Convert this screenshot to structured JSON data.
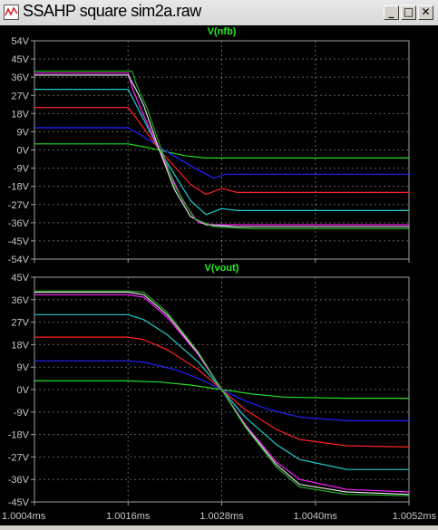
{
  "window": {
    "title": "SSAHP square sim2a.raw",
    "minimize_label": "_",
    "maximize_label": "□",
    "close_label": "✕"
  },
  "colors": {
    "background": "#000000",
    "axis": "#a0a0a0",
    "grid": "#a0a0a0",
    "tick_text": "#c8c8c8",
    "title": "#22ee22",
    "series": [
      "#22dd22",
      "#2222ff",
      "#ff2222",
      "#22cccc",
      "#ff22ff",
      "#e0e0e0",
      "#22aa22"
    ]
  },
  "chart_data": [
    {
      "type": "line",
      "title": "V(nfb)",
      "x_ticks": [
        "1.0004ms",
        "1.0016ms",
        "1.0028ms",
        "1.0040ms",
        "1.0052ms"
      ],
      "x_values": [
        1.0004,
        1.0016,
        1.0028,
        1.004,
        1.0052
      ],
      "xlim": [
        1.0004,
        1.0052
      ],
      "y_ticks": [
        "54V",
        "45V",
        "36V",
        "27V",
        "18V",
        "9V",
        "0V",
        "-9V",
        "-18V",
        "-27V",
        "-36V",
        "-45V",
        "-54V"
      ],
      "ylim": [
        -54,
        54
      ],
      "grid": true,
      "x_tick_labels_shown": false,
      "series": [
        {
          "color": "#22dd22",
          "x": [
            1.0004,
            1.0016,
            1.00188,
            1.0021,
            1.00235,
            1.0026,
            1.0029,
            1.0052
          ],
          "y": [
            3,
            3,
            1,
            -1,
            -3,
            -4,
            -4,
            -4
          ]
        },
        {
          "color": "#2222ff",
          "x": [
            1.0004,
            1.0016,
            1.00178,
            1.0021,
            1.0025,
            1.0027,
            1.00285,
            1.0032,
            1.0052
          ],
          "y": [
            11,
            11,
            7,
            -1,
            -10,
            -14,
            -12,
            -12,
            -12
          ]
        },
        {
          "color": "#ff2222",
          "x": [
            1.0004,
            1.0016,
            1.00172,
            1.002,
            1.0024,
            1.0026,
            1.0028,
            1.003,
            1.0052
          ],
          "y": [
            21,
            21,
            15,
            0,
            -17,
            -22,
            -19,
            -21,
            -21
          ]
        },
        {
          "color": "#22cccc",
          "x": [
            1.0004,
            1.0016,
            1.00168,
            1.002,
            1.0024,
            1.0026,
            1.0028,
            1.003,
            1.0052
          ],
          "y": [
            30,
            30,
            24,
            0,
            -25,
            -32,
            -29,
            -30,
            -30
          ]
        },
        {
          "color": "#ff22ff",
          "x": [
            1.0004,
            1.0016,
            1.00166,
            1.0018,
            1.002,
            1.0023,
            1.0025,
            1.0027,
            1.003,
            1.0052
          ],
          "y": [
            38,
            38,
            30,
            17,
            0,
            -25,
            -36,
            -37,
            -37,
            -37
          ]
        },
        {
          "color": "#e0e0e0",
          "x": [
            1.0004,
            1.0016,
            1.0017,
            1.0018,
            1.002,
            1.0022,
            1.0024,
            1.0026,
            1.003,
            1.0052
          ],
          "y": [
            37,
            37,
            30,
            22,
            0,
            -20,
            -33,
            -37,
            -38,
            -38
          ]
        },
        {
          "color": "#22aa22",
          "x": [
            1.0004,
            1.00165,
            1.0017,
            1.00185,
            1.002,
            1.0022,
            1.00245,
            1.0027,
            1.0032,
            1.0052
          ],
          "y": [
            39,
            39,
            33,
            20,
            3,
            -18,
            -34,
            -38,
            -39,
            -39
          ]
        }
      ]
    },
    {
      "type": "line",
      "title": "V(vout)",
      "x_ticks": [
        "1.0004ms",
        "1.0016ms",
        "1.0028ms",
        "1.0040ms",
        "1.0052ms"
      ],
      "x_values": [
        1.0004,
        1.0016,
        1.0028,
        1.004,
        1.0052
      ],
      "xlim": [
        1.0004,
        1.0052
      ],
      "y_ticks": [
        "45V",
        "36V",
        "27V",
        "18V",
        "9V",
        "0V",
        "-9V",
        "-18V",
        "-27V",
        "-36V",
        "-45V"
      ],
      "ylim": [
        -45,
        45
      ],
      "grid": true,
      "x_tick_labels_shown": true,
      "series": [
        {
          "color": "#22dd22",
          "x": [
            1.0004,
            1.0016,
            1.002,
            1.0024,
            1.0028,
            1.0032,
            1.0036,
            1.0044,
            1.0052
          ],
          "y": [
            3.5,
            3.5,
            3,
            1.8,
            0,
            -1.8,
            -3,
            -3.5,
            -3.5
          ]
        },
        {
          "color": "#2222ff",
          "x": [
            1.0004,
            1.0016,
            1.0018,
            1.0022,
            1.0025,
            1.0028,
            1.0031,
            1.0034,
            1.0038,
            1.0044,
            1.0052
          ],
          "y": [
            11.5,
            11.5,
            11,
            8,
            4.5,
            0,
            -4.5,
            -8,
            -11,
            -12.5,
            -12.5
          ]
        },
        {
          "color": "#ff2222",
          "x": [
            1.0004,
            1.0016,
            1.0018,
            1.0021,
            1.0025,
            1.0028,
            1.0031,
            1.0035,
            1.0038,
            1.0044,
            1.0052
          ],
          "y": [
            21,
            21,
            20,
            16,
            8,
            0,
            -8,
            -16,
            -20,
            -22.5,
            -23
          ]
        },
        {
          "color": "#22cccc",
          "x": [
            1.0004,
            1.0016,
            1.0018,
            1.0021,
            1.0025,
            1.0028,
            1.0031,
            1.0035,
            1.0038,
            1.0044,
            1.0052
          ],
          "y": [
            30,
            30,
            28,
            22,
            11,
            0,
            -11,
            -22,
            -28,
            -32,
            -32
          ]
        },
        {
          "color": "#ff22ff",
          "x": [
            1.0004,
            1.0016,
            1.0018,
            1.0021,
            1.0025,
            1.0028,
            1.0031,
            1.0035,
            1.0038,
            1.0044,
            1.0052
          ],
          "y": [
            38,
            38,
            37,
            29,
            14,
            0,
            -14,
            -29,
            -36,
            -40,
            -41
          ]
        },
        {
          "color": "#e0e0e0",
          "x": [
            1.0004,
            1.0016,
            1.0018,
            1.0021,
            1.0025,
            1.0028,
            1.0031,
            1.0035,
            1.0038,
            1.0044,
            1.0052
          ],
          "y": [
            39,
            39,
            38,
            30,
            14.5,
            0,
            -14.5,
            -30,
            -38,
            -41,
            -42
          ]
        },
        {
          "color": "#22aa22",
          "x": [
            1.0004,
            1.0016,
            1.0018,
            1.0021,
            1.0025,
            1.0028,
            1.0031,
            1.0035,
            1.0038,
            1.0044,
            1.0052
          ],
          "y": [
            39.5,
            39.5,
            39,
            31,
            15,
            0,
            -15,
            -31,
            -39,
            -42,
            -42.5
          ]
        }
      ]
    }
  ]
}
